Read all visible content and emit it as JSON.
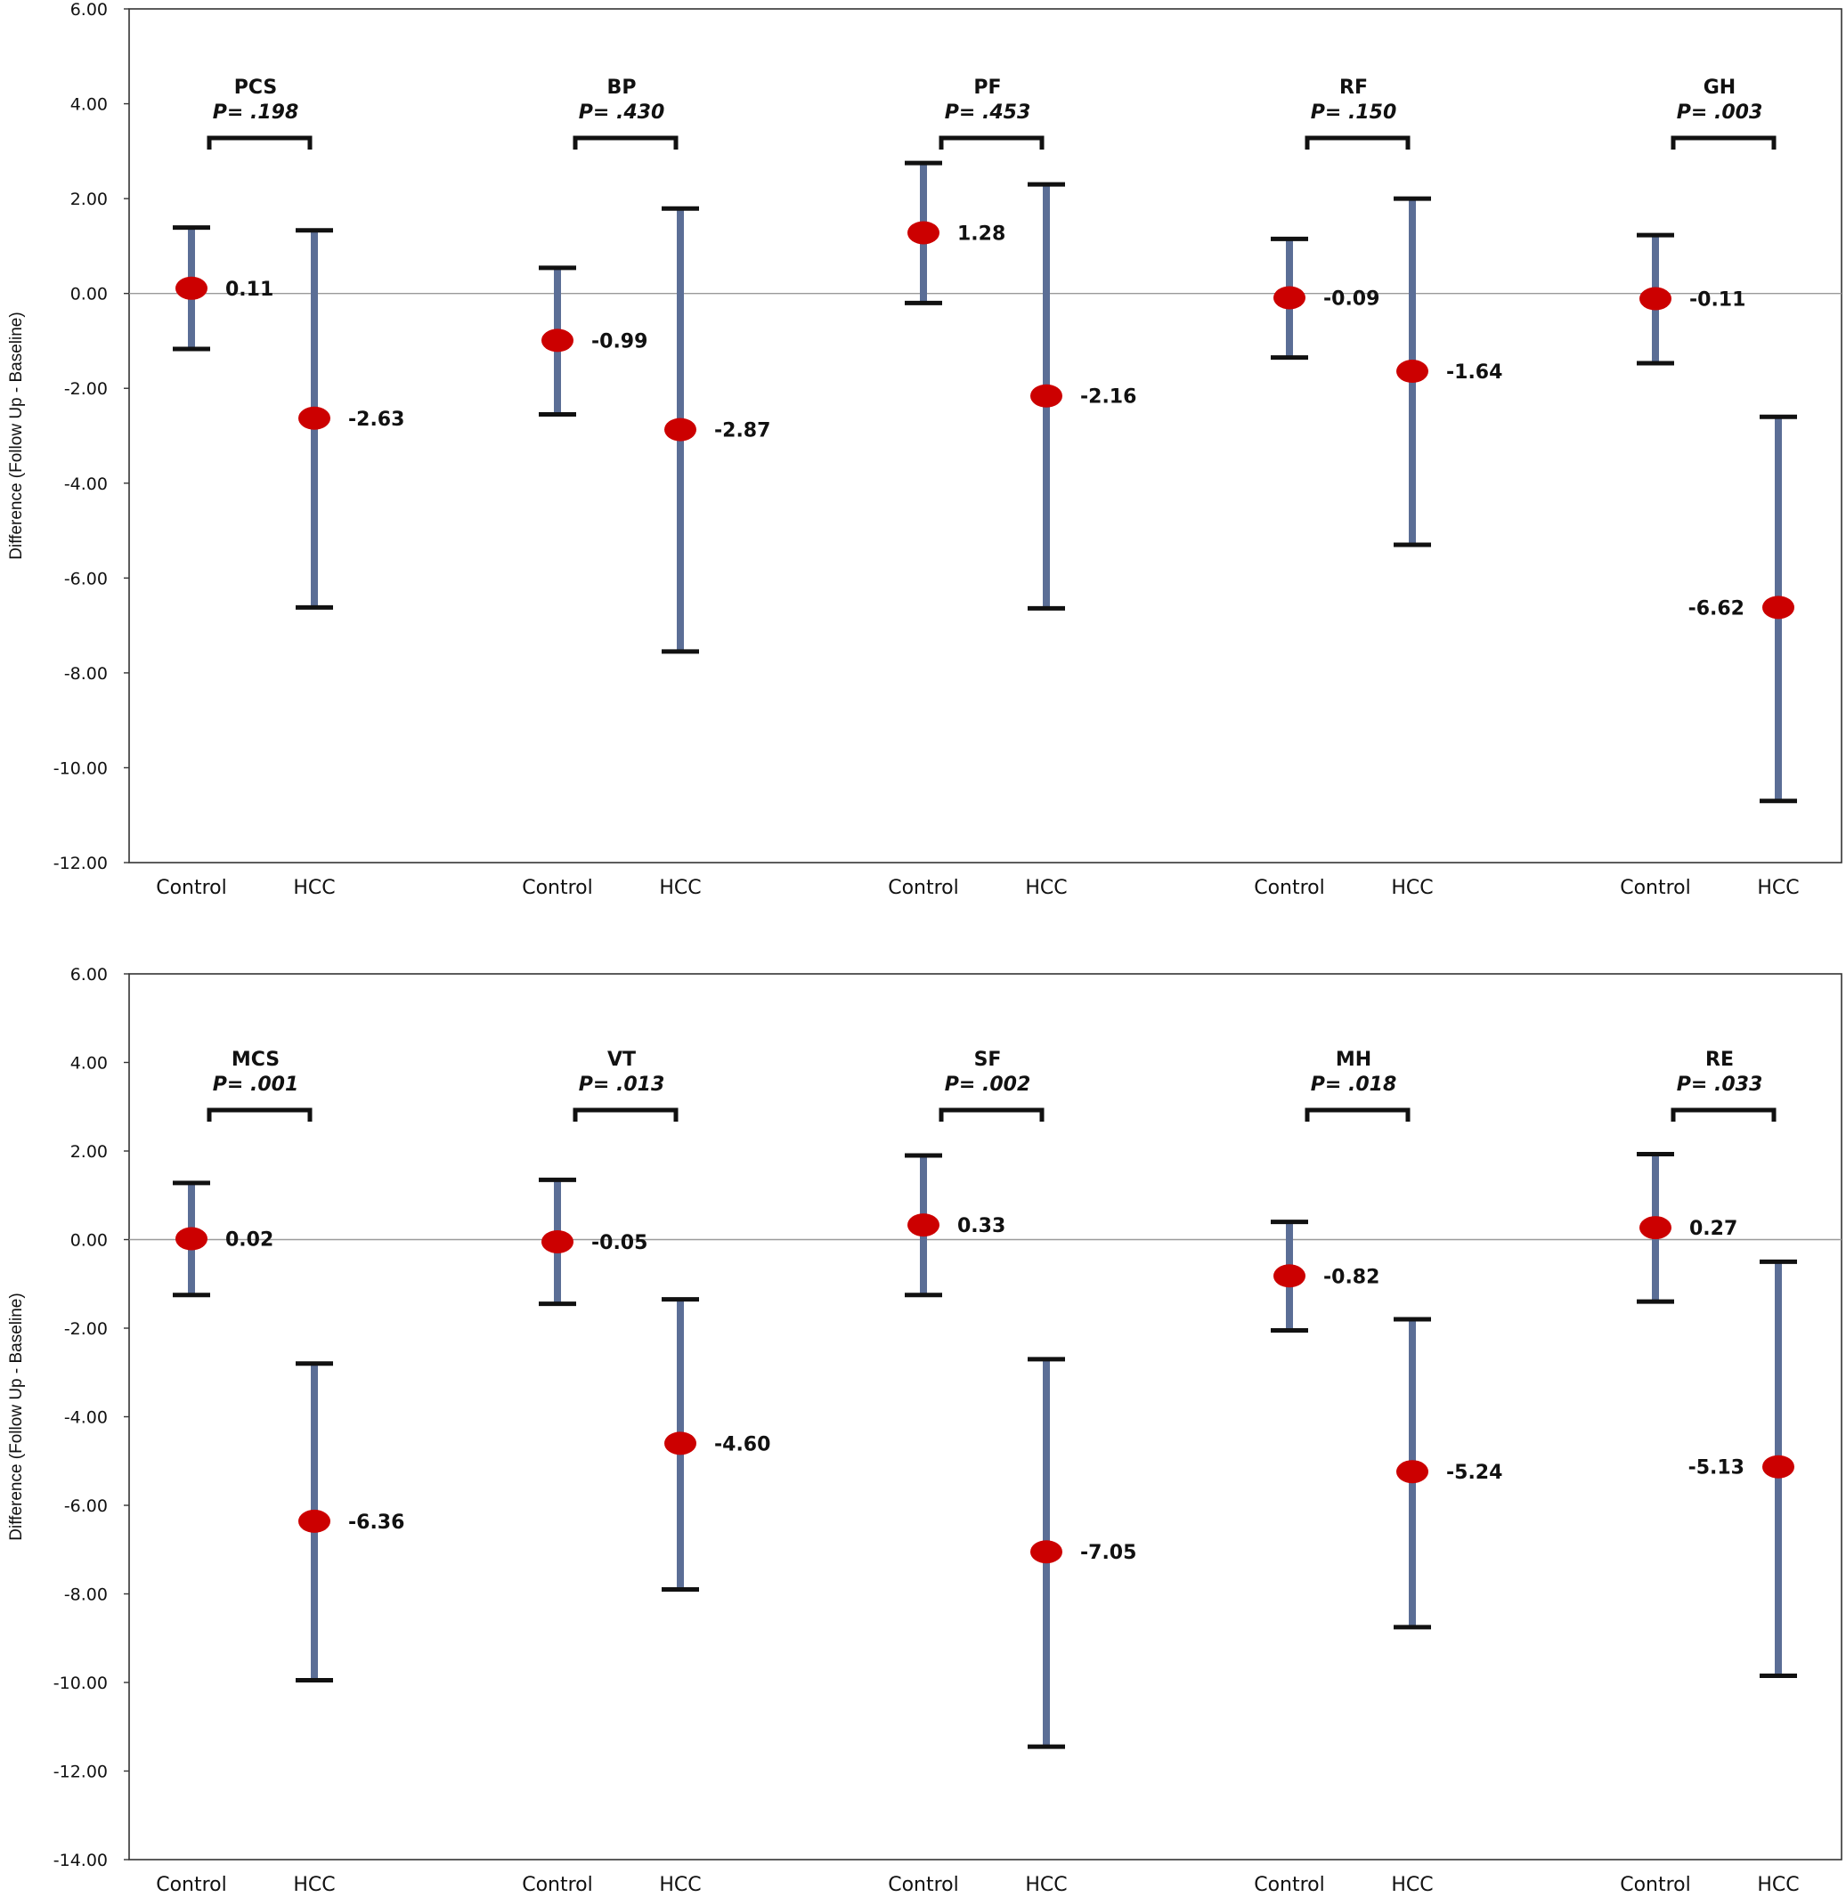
{
  "chart_data": [
    {
      "type": "scatter",
      "ylabel": "Difference (Follow Up - Baseline)",
      "ylim": [
        -12,
        6
      ],
      "yticks": [
        "6.00",
        "4.00",
        "2.00",
        "0.00",
        "-2.00",
        "-4.00",
        "-6.00",
        "-8.00",
        "-10.00",
        "-12.00"
      ],
      "zero_line": true,
      "bar_color": "#5b6e96",
      "marker_color": "#cc0000",
      "groups": [
        {
          "name": "PCS",
          "p": "P= .198",
          "points": [
            {
              "category": "Control",
              "mean": 0.11,
              "label": "0.11",
              "low": -1.17,
              "high": 1.39
            },
            {
              "category": "HCC",
              "mean": -2.63,
              "label": "-2.63",
              "low": -6.62,
              "high": 1.33
            }
          ]
        },
        {
          "name": "BP",
          "p": "P= .430",
          "points": [
            {
              "category": "Control",
              "mean": -0.99,
              "label": "-0.99",
              "low": -2.55,
              "high": 0.54
            },
            {
              "category": "HCC",
              "mean": -2.87,
              "label": "-2.87",
              "low": -7.55,
              "high": 1.79
            }
          ]
        },
        {
          "name": "PF",
          "p": "P= .453",
          "points": [
            {
              "category": "Control",
              "mean": 1.28,
              "label": "1.28",
              "low": -0.2,
              "high": 2.75
            },
            {
              "category": "HCC",
              "mean": -2.16,
              "label": "-2.16",
              "low": -6.64,
              "high": 2.3
            }
          ]
        },
        {
          "name": "RF",
          "p": "P= .150",
          "points": [
            {
              "category": "Control",
              "mean": -0.09,
              "label": "-0.09",
              "low": -1.35,
              "high": 1.15
            },
            {
              "category": "HCC",
              "mean": -1.64,
              "label": "-1.64",
              "low": -5.3,
              "high": 2.0
            }
          ]
        },
        {
          "name": "GH",
          "p": "P= .003",
          "points": [
            {
              "category": "Control",
              "mean": -0.11,
              "label": "-0.11",
              "low": -1.47,
              "high": 1.23
            },
            {
              "category": "HCC",
              "mean": -6.62,
              "label": "-6.62",
              "low": -10.7,
              "high": -2.6
            }
          ]
        }
      ]
    },
    {
      "type": "scatter",
      "ylabel": "Difference (Follow Up - Baseline)",
      "ylim": [
        -14,
        6
      ],
      "yticks": [
        "6.00",
        "4.00",
        "2.00",
        "0.00",
        "-2.00",
        "-4.00",
        "-6.00",
        "-8.00",
        "-10.00",
        "-12.00",
        "-14.00"
      ],
      "zero_line": true,
      "bar_color": "#5b6e96",
      "marker_color": "#cc0000",
      "groups": [
        {
          "name": "MCS",
          "p": "P= .001",
          "points": [
            {
              "category": "Control",
              "mean": 0.02,
              "label": "0.02",
              "low": -1.25,
              "high": 1.28
            },
            {
              "category": "HCC",
              "mean": -6.36,
              "label": "-6.36",
              "low": -9.95,
              "high": -2.8
            }
          ]
        },
        {
          "name": "VT",
          "p": "P= .013",
          "points": [
            {
              "category": "Control",
              "mean": -0.05,
              "label": "-0.05",
              "low": -1.45,
              "high": 1.35
            },
            {
              "category": "HCC",
              "mean": -4.6,
              "label": "-4.60",
              "low": -7.9,
              "high": -1.35
            }
          ]
        },
        {
          "name": "SF",
          "p": "P= .002",
          "points": [
            {
              "category": "Control",
              "mean": 0.33,
              "label": "0.33",
              "low": -1.25,
              "high": 1.9
            },
            {
              "category": "HCC",
              "mean": -7.05,
              "label": "-7.05",
              "low": -11.45,
              "high": -2.7
            }
          ]
        },
        {
          "name": "MH",
          "p": "P= .018",
          "points": [
            {
              "category": "Control",
              "mean": -0.82,
              "label": "-0.82",
              "low": -2.05,
              "high": 0.4
            },
            {
              "category": "HCC",
              "mean": -5.24,
              "label": "-5.24",
              "low": -8.75,
              "high": -1.8
            }
          ]
        },
        {
          "name": "RE",
          "p": "P= .033",
          "points": [
            {
              "category": "Control",
              "mean": 0.27,
              "label": "0.27",
              "low": -1.4,
              "high": 1.93
            },
            {
              "category": "HCC",
              "mean": -5.13,
              "label": "-5.13",
              "low": -9.85,
              "high": -0.5
            }
          ]
        }
      ]
    }
  ]
}
